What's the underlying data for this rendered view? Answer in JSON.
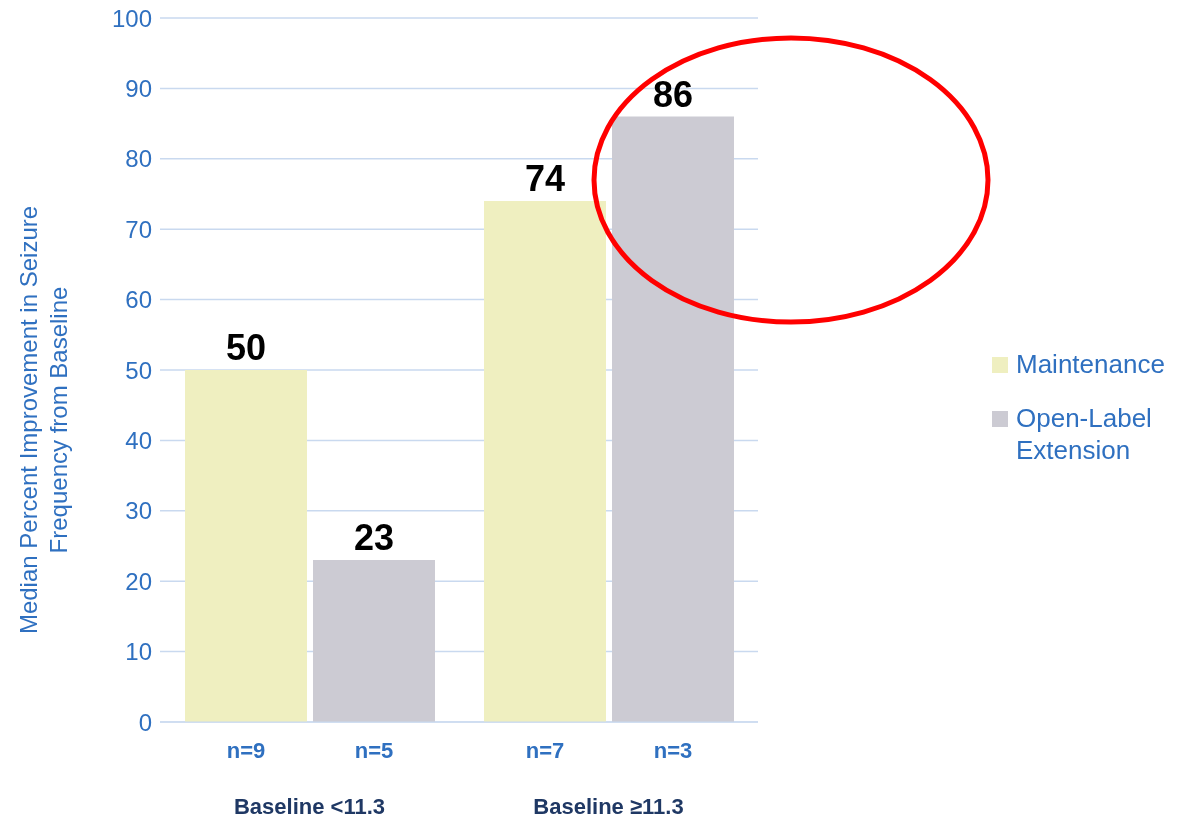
{
  "chart_data": {
    "type": "bar",
    "ylabel": "Median Percent Improvement in Seizure Frequency from Baseline",
    "categories": [
      "Baseline <11.3",
      "Baseline ≥11.3"
    ],
    "series": [
      {
        "name": "Maintenance",
        "color": "#efefc0",
        "values": [
          50,
          74
        ]
      },
      {
        "name": "Open-Label Extension",
        "color": "#cccbd3",
        "values": [
          23,
          86
        ]
      }
    ],
    "ylim": [
      0,
      100
    ],
    "yticks": [
      0,
      10,
      20,
      30,
      40,
      50,
      60,
      70,
      80,
      90,
      100
    ],
    "grid": "y",
    "legend": "right",
    "data_labels": true,
    "annotations": [
      "n=9",
      "n=5",
      "n=7",
      "n=3"
    ]
  }
}
